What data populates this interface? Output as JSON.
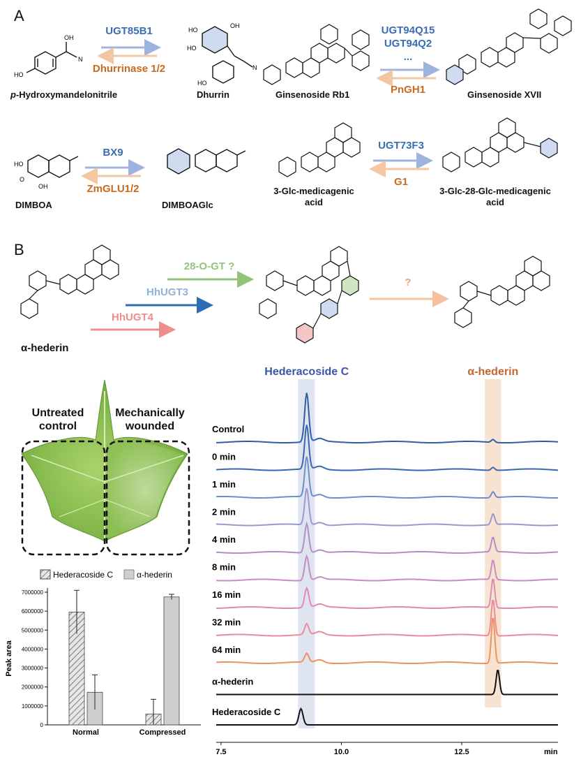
{
  "panel_a": {
    "letter": "A",
    "row1": {
      "compounds": [
        "p-Hydroxymandelonitrile",
        "Dhurrin",
        "Ginsenoside Rb1",
        "Ginsenoside XVII"
      ],
      "compound0_italic_prefix": "p",
      "compound0_rest": "-Hydroxymandelonitrile",
      "forward_enzyme_1": "UGT85B1",
      "reverse_enzyme_1": "Dhurrinase 1/2",
      "forward_enzyme_2a": "UGT94Q15",
      "forward_enzyme_2b": "UGT94Q2",
      "forward_enzyme_2c": "...",
      "reverse_enzyme_2": "PnGH1"
    },
    "row2": {
      "compounds": [
        "DIMBOA",
        "DIMBOAGlc",
        "3-Glc-medicagenic",
        "acid",
        "3-Glc-28-Glc-medicagenic",
        "acid"
      ],
      "forward_enzyme_1": "BX9",
      "reverse_enzyme_1": "ZmGLU1/2",
      "forward_enzyme_2": "UGT73F3",
      "reverse_enzyme_2": "G1"
    }
  },
  "panel_b": {
    "letter": "B",
    "enzymes": {
      "gt28": "28-O-GT ?",
      "hhugt3": "HhUGT3",
      "hhugt4": "HhUGT4",
      "unknown": "?"
    },
    "start_compound": "α-hederin",
    "leaf": {
      "left_label": [
        "Untreated",
        "control"
      ],
      "right_label": [
        "Mechanically",
        "wounded"
      ]
    }
  },
  "bar_chart": {
    "chart_data": {
      "type": "bar",
      "categories": [
        "Normal",
        "Compressed"
      ],
      "series": [
        {
          "name": "Hederacoside C",
          "values": [
            5950000,
            570000
          ],
          "errors": [
            1150000,
            780000
          ]
        },
        {
          "name": "α-hederin",
          "values": [
            1720000,
            6750000
          ],
          "errors": [
            920000,
            140000
          ]
        }
      ],
      "ylabel": "Peak area",
      "ylim": [
        0,
        7000000
      ],
      "yticks": [
        "0",
        "1000000",
        "2000000",
        "3000000",
        "4000000",
        "5000000",
        "6000000",
        "7000000"
      ],
      "legend": "top"
    },
    "colors": {
      "hederacoside": "#cfcfcf",
      "hederin": "#cfcfcf"
    }
  },
  "chromatogram": {
    "chart_data": {
      "type": "line",
      "x_ticks": [
        "7.5",
        "10.0",
        "12.5"
      ],
      "x_unit": "min",
      "xlim": [
        7.4,
        14.5
      ],
      "peak_labels": {
        "hederacoside": "Hederacoside C",
        "hederin": "α-hederin"
      },
      "traces": [
        {
          "name": "Control",
          "color": "#2f5ea8",
          "peakA": 1.0,
          "peakB": 0.06
        },
        {
          "name": "0 min",
          "color": "#3a66b0",
          "peakA": 0.9,
          "peakB": 0.06
        },
        {
          "name": "1 min",
          "color": "#6b8fc9",
          "peakA": 0.82,
          "peakB": 0.12
        },
        {
          "name": "2 min",
          "color": "#9a98cf",
          "peakA": 0.75,
          "peakB": 0.22
        },
        {
          "name": "4 min",
          "color": "#b38ec6",
          "peakA": 0.6,
          "peakB": 0.3
        },
        {
          "name": "8 min",
          "color": "#c98cc2",
          "peakA": 0.5,
          "peakB": 0.4
        },
        {
          "name": "16 min",
          "color": "#de8bb4",
          "peakA": 0.4,
          "peakB": 0.6
        },
        {
          "name": "32 min",
          "color": "#ea8b9b",
          "peakA": 0.22,
          "peakB": 0.75
        },
        {
          "name": "64 min",
          "color": "#f0925e",
          "peakA": 0.18,
          "peakB": 0.95
        },
        {
          "name": "α-hederin",
          "color": "#111111",
          "peakA": 0.0,
          "peakB": 0.85
        },
        {
          "name": "Hederacoside C",
          "color": "#111111",
          "peakA": 0.55,
          "peakB": 0.0
        }
      ]
    },
    "band_colors": {
      "hederacoside": "#dfe5f0",
      "hederin": "#f6e3d1"
    }
  },
  "colors": {
    "blue_enzyme": "#3a6db3",
    "orange_enzyme": "#c96a1e",
    "fwd_arrow": "#9fb3e0",
    "rev_arrow": "#f3c7a2",
    "green_enzyme": "#92c47a",
    "light_blue_enzyme": "#8fb2d8",
    "dark_blue_arrow": "#2e6cb5",
    "pink_enzyme": "#ef8c8c",
    "peach_arrow": "#f4c19c",
    "peak_blue_label": "#3a56a8",
    "peak_orange_label": "#c2662a"
  }
}
